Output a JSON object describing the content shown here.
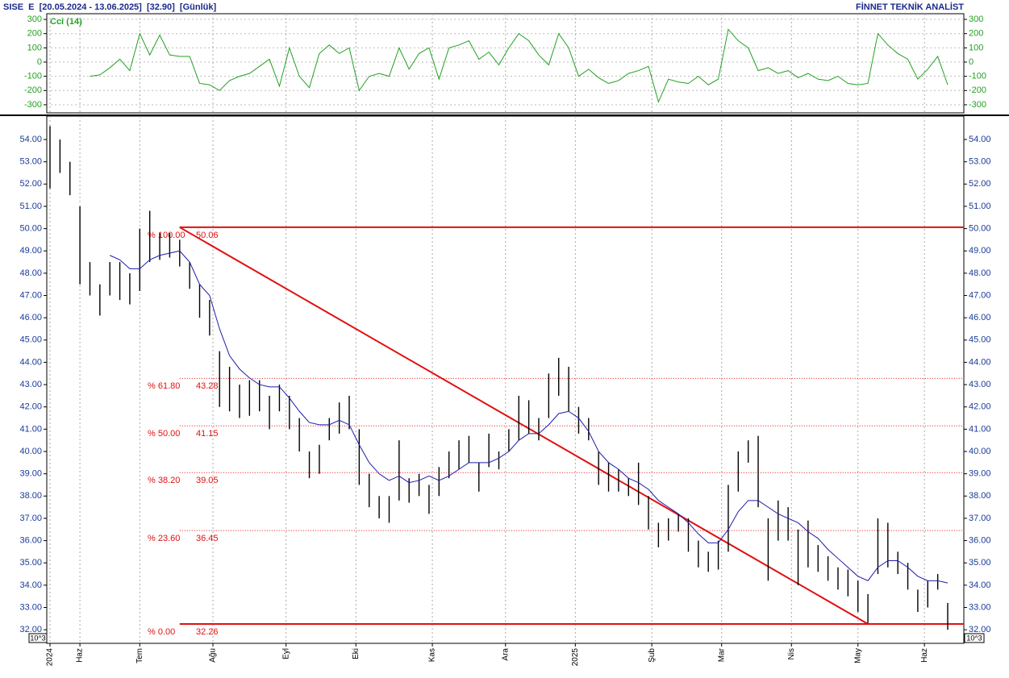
{
  "header": {
    "title": "SISE  E  [20.05.2024 - 13.06.2025]  [32.90]  [Günlük]",
    "brand": "FİNNET TEKNİK ANALİST"
  },
  "chart_data": [
    {
      "type": "line",
      "title": "Cci (14)",
      "color": "#22a022",
      "xlim": [
        -0.97,
        274.85
      ],
      "ylim": [
        -340,
        340
      ],
      "yticks": [
        -300,
        -200,
        -100,
        0,
        100,
        200,
        300
      ],
      "grid": true,
      "xticks": [
        {
          "value": 0,
          "label": "2024"
        },
        {
          "value": 9,
          "label": "Haz"
        },
        {
          "value": 27,
          "label": "Tem"
        },
        {
          "value": 49,
          "label": "Ağu"
        },
        {
          "value": 71,
          "label": "Eyl"
        },
        {
          "value": 92,
          "label": "Eki"
        },
        {
          "value": 115,
          "label": "Kas"
        },
        {
          "value": 137,
          "label": "Ara"
        },
        {
          "value": 158,
          "label": "2025"
        },
        {
          "value": 181,
          "label": "Şub"
        },
        {
          "value": 202,
          "label": "Mar"
        },
        {
          "value": 223,
          "label": "Nis"
        },
        {
          "value": 243,
          "label": "May"
        },
        {
          "value": 263,
          "label": "Haz"
        }
      ],
      "x": [
        12,
        15,
        18,
        21,
        24,
        27,
        30,
        33,
        36,
        39,
        42,
        45,
        48,
        51,
        54,
        57,
        60,
        63,
        66,
        69,
        72,
        75,
        78,
        81,
        84,
        87,
        90,
        93,
        96,
        99,
        102,
        105,
        108,
        111,
        114,
        117,
        120,
        123,
        126,
        129,
        132,
        135,
        138,
        141,
        144,
        147,
        150,
        153,
        156,
        159,
        162,
        165,
        168,
        171,
        174,
        177,
        180,
        183,
        186,
        189,
        192,
        195,
        198,
        201,
        204,
        207,
        210,
        213,
        216,
        219,
        222,
        225,
        228,
        231,
        234,
        237,
        240,
        243,
        246,
        249,
        252,
        255,
        258,
        261,
        264,
        267,
        270
      ],
      "values": [
        -100,
        -90,
        -40,
        20,
        -60,
        200,
        50,
        190,
        50,
        40,
        40,
        -150,
        -160,
        -200,
        -130,
        -100,
        -80,
        -30,
        20,
        -170,
        100,
        -100,
        -180,
        60,
        120,
        60,
        100,
        -200,
        -100,
        -80,
        -100,
        100,
        -50,
        60,
        100,
        -120,
        100,
        120,
        150,
        20,
        70,
        -20,
        100,
        200,
        150,
        50,
        -20,
        200,
        100,
        -100,
        -50,
        -110,
        -150,
        -130,
        -80,
        -60,
        -30,
        -280,
        -120,
        -140,
        -150,
        -100,
        -160,
        -120,
        230,
        150,
        100,
        -60,
        -40,
        -80,
        -60,
        -110,
        -80,
        -120,
        -130,
        -100,
        -150,
        -160,
        -150,
        200,
        120,
        60,
        20,
        -120,
        -50,
        40,
        -160
      ]
    },
    {
      "type": "ohlc",
      "scale_label": "10^3",
      "bar_color": "#000000",
      "ma_color": "#1c1ca8",
      "fib_color": "#e01010",
      "xlim": [
        -0.97,
        274.85
      ],
      "ylim": [
        31.39,
        55.05
      ],
      "yticks": [
        {
          "value": 32,
          "label": "32.00"
        },
        {
          "value": 33,
          "label": "33.00"
        },
        {
          "value": 34,
          "label": "34.00"
        },
        {
          "value": 35,
          "label": "35.00"
        },
        {
          "value": 36,
          "label": "36.00"
        },
        {
          "value": 37,
          "label": "37.00"
        },
        {
          "value": 38,
          "label": "38.00"
        },
        {
          "value": 39,
          "label": "39.00"
        },
        {
          "value": 40,
          "label": "40.00"
        },
        {
          "value": 41,
          "label": "41.00"
        },
        {
          "value": 42,
          "label": "42.00"
        },
        {
          "value": 43,
          "label": "43.00"
        },
        {
          "value": 44,
          "label": "44.00"
        },
        {
          "value": 45,
          "label": "45.00"
        },
        {
          "value": 46,
          "label": "46.00"
        },
        {
          "value": 47,
          "label": "47.00"
        },
        {
          "value": 48,
          "label": "48.00"
        },
        {
          "value": 49,
          "label": "49.00"
        },
        {
          "value": 50,
          "label": "50.00"
        },
        {
          "value": 51,
          "label": "51.00"
        },
        {
          "value": 52,
          "label": "52.00"
        },
        {
          "value": 53,
          "label": "53.00"
        },
        {
          "value": 54,
          "label": "54.00"
        }
      ],
      "x": [
        0,
        3,
        6,
        9,
        12,
        15,
        18,
        21,
        24,
        27,
        30,
        33,
        36,
        39,
        42,
        45,
        48,
        51,
        54,
        57,
        60,
        63,
        66,
        69,
        72,
        75,
        78,
        81,
        84,
        87,
        90,
        93,
        96,
        99,
        102,
        105,
        108,
        111,
        114,
        117,
        120,
        123,
        126,
        129,
        132,
        135,
        138,
        141,
        144,
        147,
        150,
        153,
        156,
        159,
        162,
        165,
        168,
        171,
        174,
        177,
        180,
        183,
        186,
        189,
        192,
        195,
        198,
        201,
        204,
        207,
        210,
        213,
        216,
        219,
        222,
        225,
        228,
        231,
        234,
        237,
        240,
        243,
        246,
        249,
        252,
        255,
        258,
        261,
        264,
        267,
        270
      ],
      "high": [
        54.6,
        54,
        53,
        51,
        48.5,
        47.5,
        48.5,
        48.5,
        48,
        50,
        50.8,
        49.8,
        49.8,
        49.5,
        48.5,
        47.5,
        46.8,
        44.5,
        43.8,
        43,
        43.2,
        43.2,
        42.5,
        43,
        42.5,
        41.5,
        40,
        40.3,
        41.5,
        42.2,
        42.5,
        41,
        39,
        38,
        38,
        40.5,
        38.8,
        39,
        38.5,
        39.3,
        40,
        40.5,
        40.7,
        39.5,
        40.8,
        40,
        41,
        42.5,
        42.3,
        41.5,
        43.5,
        44.2,
        43.8,
        42,
        41.5,
        40,
        39.5,
        39.2,
        38.8,
        39.5,
        38,
        36.8,
        37,
        37.2,
        37,
        36,
        35.5,
        36,
        38.5,
        40,
        40.5,
        40.7,
        37,
        37.8,
        37.5,
        36.5,
        36.9,
        35.8,
        35.3,
        34.8,
        34.7,
        34.2,
        33.6,
        37,
        36.8,
        35.5,
        35,
        33.8,
        34.2,
        34.5,
        33.2
      ],
      "low": [
        51.8,
        52.5,
        51.5,
        47.5,
        47,
        46.1,
        47,
        46.8,
        46.6,
        47.2,
        48.5,
        48.6,
        48.7,
        48.3,
        47.3,
        46,
        45.2,
        42,
        41.8,
        41.5,
        41.6,
        41.8,
        41,
        41.8,
        41,
        40,
        38.8,
        39,
        40.5,
        40.8,
        41,
        38.5,
        37.5,
        37,
        36.8,
        37.8,
        37.7,
        38,
        37.2,
        38,
        38.8,
        39.2,
        39.5,
        38.2,
        39.3,
        39.2,
        40,
        40.5,
        40.8,
        40.5,
        41.5,
        42.5,
        41.8,
        40.8,
        40.5,
        38.5,
        38.2,
        38.2,
        38,
        37.6,
        36.5,
        35.7,
        36,
        36.4,
        35.5,
        34.8,
        34.6,
        34.7,
        35.5,
        38.2,
        39.5,
        37.5,
        34.2,
        36,
        36,
        34,
        34.8,
        34.6,
        34.2,
        33.8,
        33.5,
        32.8,
        32.3,
        34.5,
        34.8,
        34.5,
        33.8,
        32.8,
        33,
        33.8,
        32
      ],
      "ma": [
        null,
        null,
        null,
        null,
        null,
        null,
        48.8,
        48.6,
        48.2,
        48.2,
        48.6,
        48.8,
        48.9,
        49,
        48.5,
        47.5,
        47,
        45.5,
        44.3,
        43.7,
        43.3,
        43,
        42.9,
        42.9,
        42.4,
        41.8,
        41.3,
        41.2,
        41.2,
        41.4,
        41.2,
        40.3,
        39.5,
        39,
        38.7,
        38.9,
        38.6,
        38.7,
        38.9,
        38.7,
        38.9,
        39.2,
        39.5,
        39.5,
        39.5,
        39.7,
        40,
        40.5,
        40.8,
        40.8,
        41.2,
        41.7,
        41.8,
        41.5,
        40.9,
        40,
        39.5,
        39.2,
        38.8,
        38.6,
        38.3,
        37.8,
        37.5,
        37.2,
        36.8,
        36.3,
        35.9,
        35.9,
        36.5,
        37.3,
        37.8,
        37.8,
        37.5,
        37.2,
        37,
        36.8,
        36.4,
        36.1,
        35.6,
        35.2,
        34.8,
        34.4,
        34.2,
        34.8,
        35.1,
        35.1,
        34.8,
        34.4,
        34.2,
        34.2,
        34.1
      ],
      "trendline": {
        "x": [
          39,
          246
        ],
        "y": [
          50.06,
          32.26
        ]
      },
      "fib_levels": [
        {
          "label": "% 100.00",
          "value": 50.06
        },
        {
          "label": "% 61.80",
          "value": 43.28
        },
        {
          "label": "% 50.00",
          "value": 41.15
        },
        {
          "label": "% 38.20",
          "value": 39.05
        },
        {
          "label": "% 23.60",
          "value": 36.45
        },
        {
          "label": "% 0.00",
          "value": 32.26
        }
      ]
    }
  ]
}
